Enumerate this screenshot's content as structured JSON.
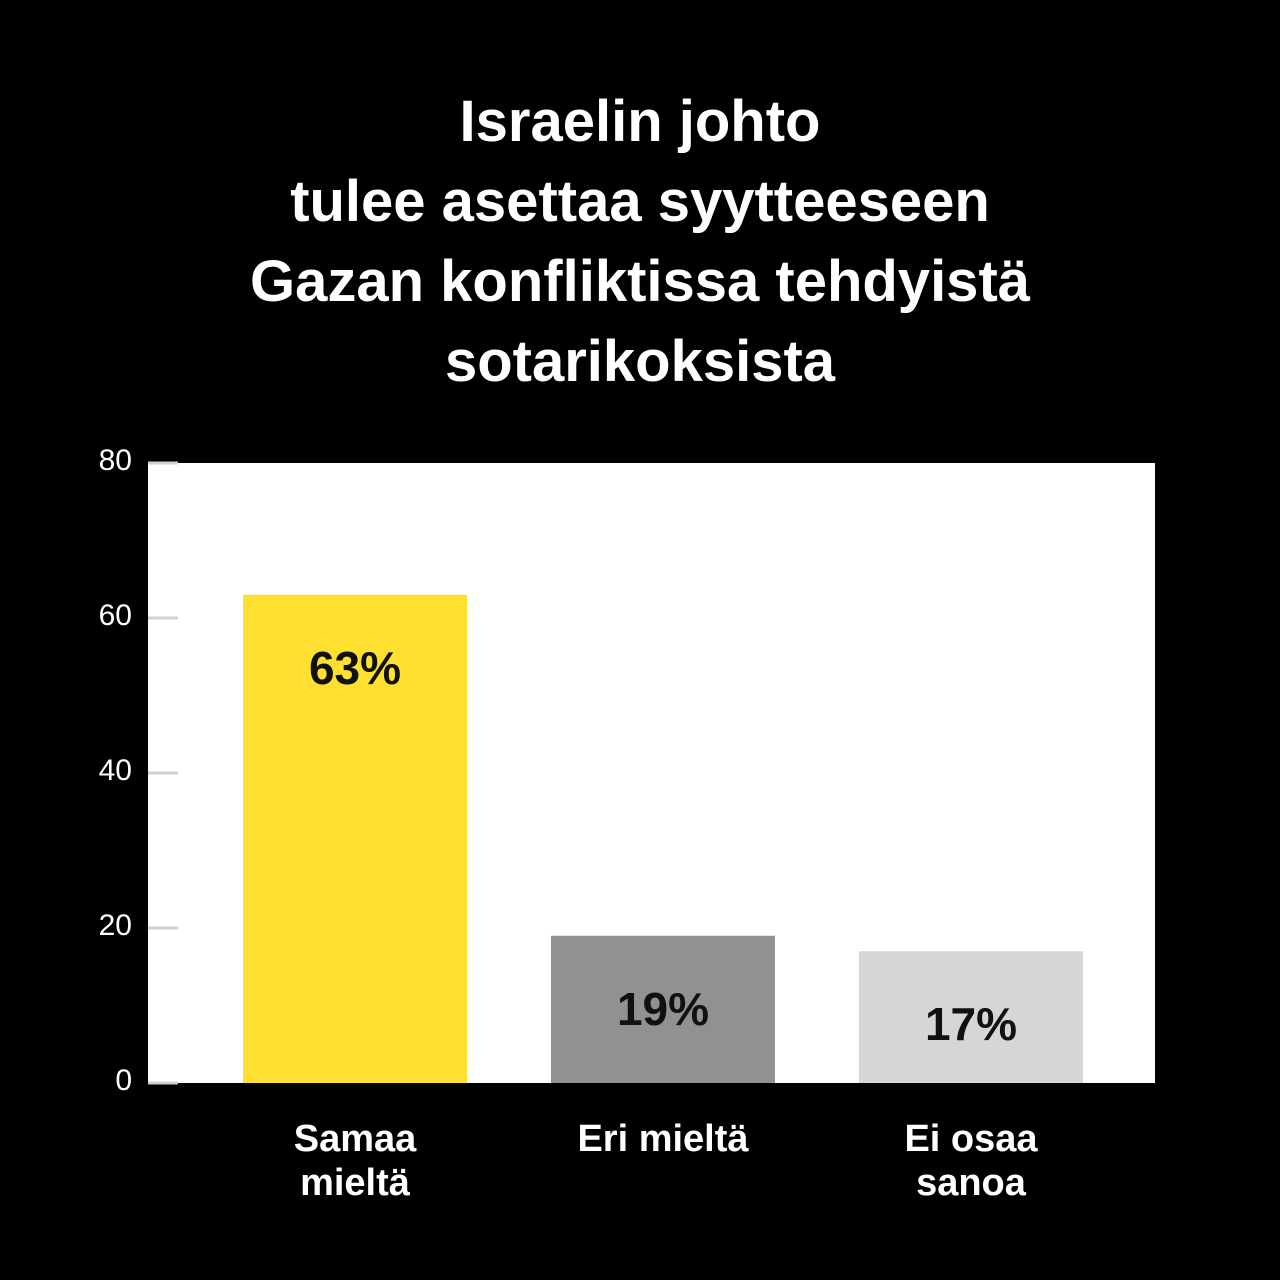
{
  "chart_data": {
    "type": "bar",
    "title": "Israelin johto\ntulee asettaa syytteeseen\nGazan konfliktissa tehdyistä\nsotarikoksista",
    "categories": [
      "Samaa\nmieltä",
      "Eri mieltä",
      "Ei osaa\nsanoa"
    ],
    "values": [
      63,
      19,
      17
    ],
    "value_labels": [
      "63%",
      "19%",
      "17%"
    ],
    "colors": [
      "#ffe030",
      "#919191",
      "#d6d6d6"
    ],
    "ylim": [
      0,
      80
    ],
    "yticks": [
      0,
      20,
      40,
      60,
      80
    ]
  }
}
